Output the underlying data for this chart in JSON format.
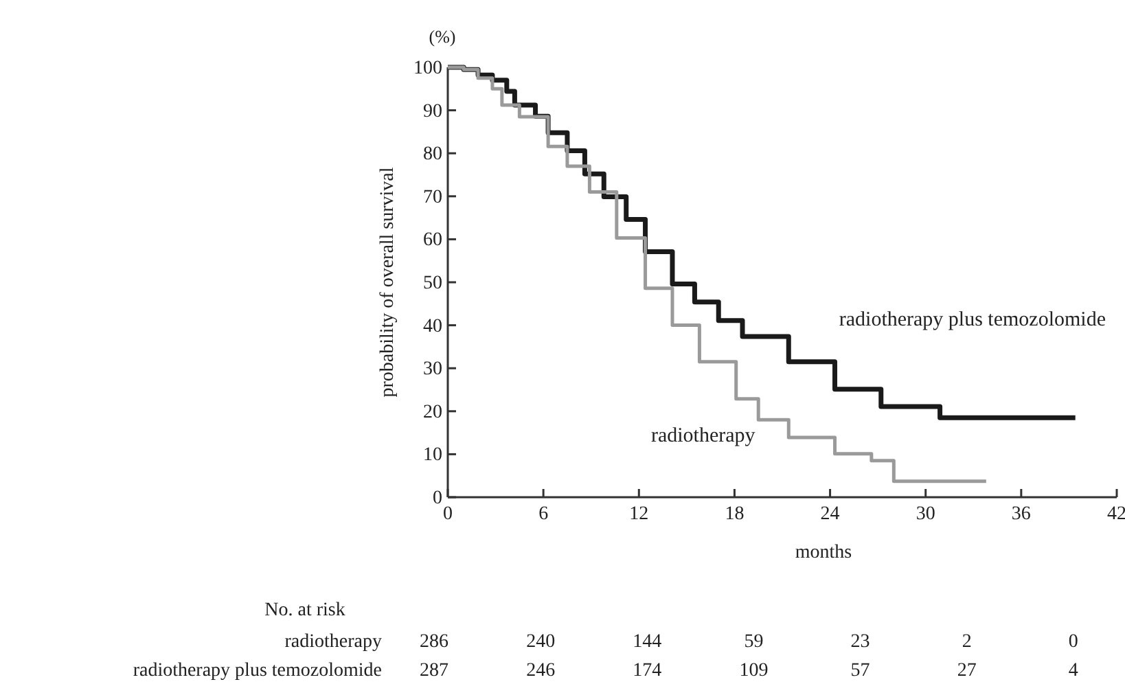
{
  "chart_data": {
    "type": "step",
    "xlabel": "months",
    "ylabel": "probability of overall survival",
    "xlim": [
      0,
      42
    ],
    "xticks": [
      0,
      6,
      12,
      18,
      24,
      30,
      36,
      42
    ],
    "ylim": [
      0,
      100
    ],
    "yticks": [
      0,
      10,
      20,
      30,
      40,
      50,
      60,
      70,
      80,
      90,
      100
    ],
    "grid": false,
    "series": [
      {
        "name": "radiotherapy plus temozolomide",
        "color": "#1a1a1a",
        "x": [
          0,
          1,
          1.9,
          2.8,
          3.7,
          4.2,
          5.5,
          6.3,
          7.5,
          8.6,
          9.8,
          11.2,
          12.4,
          14.1,
          15.5,
          17,
          18.5,
          21.4,
          24.3,
          27.2,
          30.3,
          30.9,
          39.4
        ],
        "values": [
          100,
          99.5,
          98.2,
          97,
          94.4,
          91.2,
          88.6,
          84.8,
          80.6,
          75.2,
          69.9,
          64.6,
          57.1,
          49.6,
          45.4,
          41.1,
          37.4,
          31.5,
          25.1,
          21.1,
          21.1,
          18.5,
          18.5
        ]
      },
      {
        "name": "radiotherapy",
        "color": "#9a9a9a",
        "x": [
          0,
          1,
          1.9,
          2.8,
          3.4,
          4.5,
          6.3,
          7.5,
          8.9,
          10.6,
          12.4,
          14.1,
          15.8,
          18.1,
          19.5,
          21.4,
          24.3,
          26.6,
          28,
          33.8
        ],
        "values": [
          100,
          99.5,
          97.5,
          95,
          91.2,
          88.5,
          81.6,
          77,
          71,
          60.3,
          48.6,
          40,
          31.5,
          22.9,
          18,
          13.9,
          10.1,
          8.5,
          3.7,
          3.7
        ]
      }
    ],
    "annotations": [
      "(%)",
      "No. at risk",
      "radiotherapy",
      "286",
      "240",
      "144",
      "59",
      "23",
      "2",
      "0",
      "radiotherapy plus temozolomide",
      "287",
      "246",
      "174",
      "109",
      "57",
      "27",
      "4"
    ]
  }
}
